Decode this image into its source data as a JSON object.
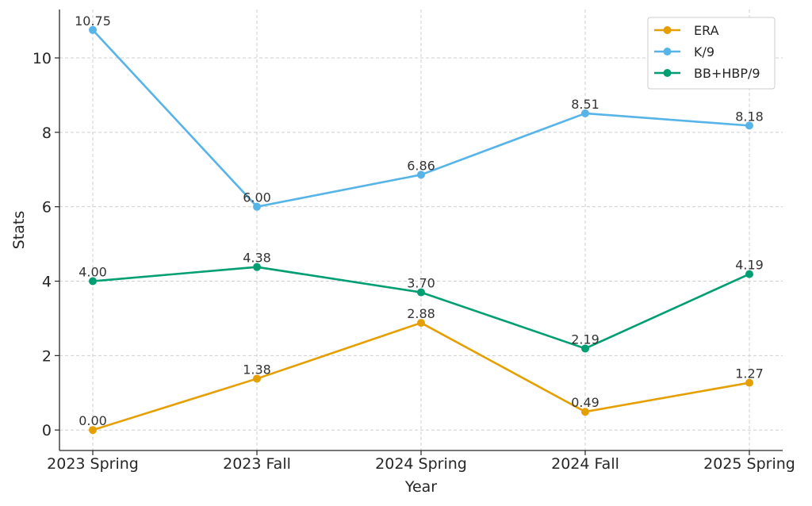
{
  "chart_data": {
    "type": "line",
    "categories": [
      "2023 Spring",
      "2023 Fall",
      "2024 Spring",
      "2024 Fall",
      "2025 Spring"
    ],
    "xlabel": "Year",
    "ylabel": "Stats",
    "ylim": [
      -0.55,
      11.3
    ],
    "yticks": [
      0,
      2,
      4,
      6,
      8,
      10
    ],
    "grid": true,
    "legend_position": "top-right",
    "series": [
      {
        "name": "ERA",
        "color": "#E69F00",
        "values": [
          0.0,
          1.38,
          2.88,
          0.49,
          1.27
        ],
        "labels": [
          "0.00",
          "1.38",
          "2.88",
          "0.49",
          "1.27"
        ]
      },
      {
        "name": "K/9",
        "color": "#56B4E9",
        "values": [
          10.75,
          6.0,
          6.86,
          8.51,
          8.18
        ],
        "labels": [
          "10.75",
          "6.00",
          "6.86",
          "8.51",
          "8.18"
        ]
      },
      {
        "name": "BB+HBP/9",
        "color": "#009E73",
        "values": [
          4.0,
          4.38,
          3.7,
          2.19,
          4.19
        ],
        "labels": [
          "4.00",
          "4.38",
          "3.70",
          "2.19",
          "4.19"
        ]
      }
    ]
  }
}
